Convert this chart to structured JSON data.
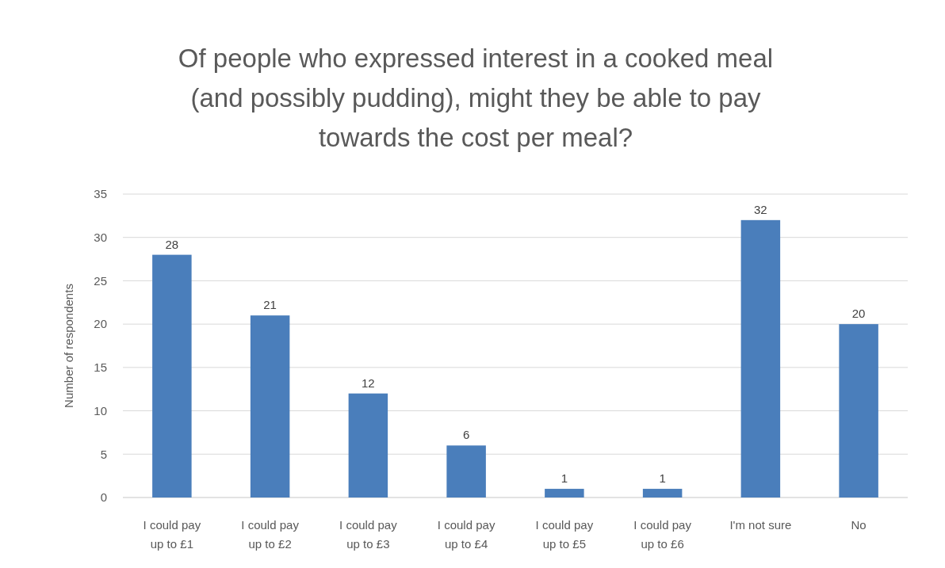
{
  "chart_data": {
    "type": "bar",
    "title": "Of people who expressed interest in a cooked meal (and possibly pudding), might they be able to pay towards the cost per meal?",
    "ylabel": "Number of respondents",
    "categories": [
      "I could pay up to £1",
      "I could pay up to £2",
      "I could pay up to £3",
      "I could pay up to £4",
      "I could pay up to £5",
      "I could pay up to £6",
      "I'm not sure",
      "No"
    ],
    "values": [
      28,
      21,
      12,
      6,
      1,
      1,
      32,
      20
    ],
    "color": "#4a7ebb",
    "ylim": [
      0,
      35
    ],
    "yticks": [
      0,
      5,
      10,
      15,
      20,
      25,
      30,
      35
    ],
    "grid": "y",
    "data_labels": true
  }
}
